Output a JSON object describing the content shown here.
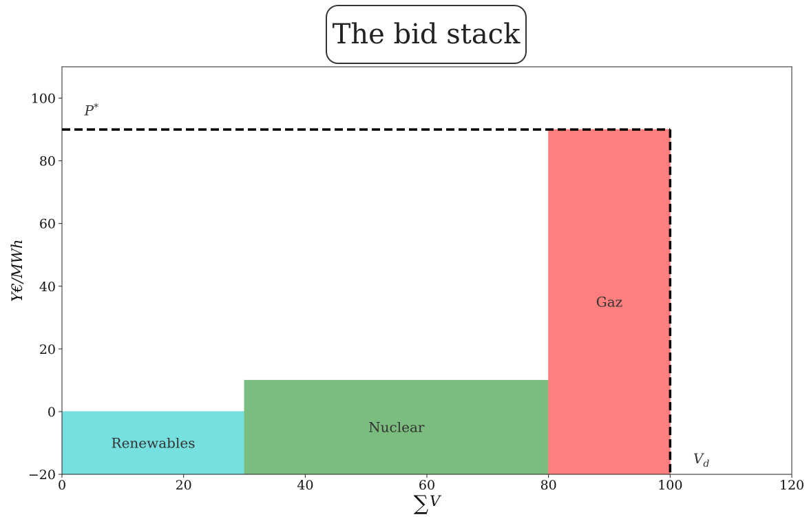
{
  "chart_data": {
    "type": "bar",
    "title": "The bid stack",
    "xlabel": "∑V",
    "ylabel": "Y€/MWh",
    "xlim": [
      0,
      120
    ],
    "ylim": [
      -20,
      110
    ],
    "xticks": [
      0,
      20,
      40,
      60,
      80,
      100,
      120
    ],
    "yticks": [
      -20,
      0,
      20,
      40,
      60,
      80,
      100
    ],
    "xtick_labels": [
      "0",
      "20",
      "40",
      "60",
      "80",
      "100",
      "120"
    ],
    "ytick_labels": [
      "−20",
      "0",
      "20",
      "40",
      "60",
      "80",
      "100"
    ],
    "grid": false,
    "bars": [
      {
        "label": "Renewables",
        "x_start": 0,
        "x_end": 30,
        "price": 0,
        "color": "#76dfdf"
      },
      {
        "label": "Nuclear",
        "x_start": 30,
        "x_end": 80,
        "price": 10,
        "color": "#7abd7f"
      },
      {
        "label": "Gaz",
        "x_start": 80,
        "x_end": 100,
        "price": 90,
        "color": "#ff7f7f"
      }
    ],
    "clearing_price": {
      "label": "P*",
      "value": 90
    },
    "demand_volume": {
      "label": "V_d",
      "value": 100
    }
  }
}
